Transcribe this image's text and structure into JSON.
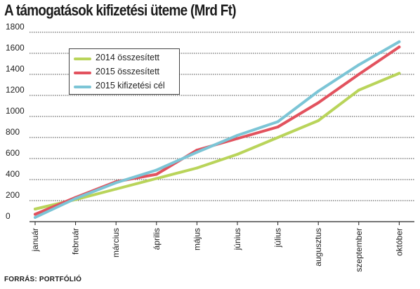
{
  "title": "A támogatások kifizetési üteme (Mrd Ft)",
  "source": "FORRÁS: PORTFÓLIÓ",
  "chart_data": {
    "type": "line",
    "title": "A támogatások kifizetési üteme (Mrd Ft)",
    "categories": [
      "január",
      "február",
      "március",
      "április",
      "május",
      "június",
      "július",
      "augusztus",
      "szeptember",
      "október"
    ],
    "ylim": [
      0,
      1800
    ],
    "yticks": [
      "0",
      "200",
      "400",
      "600",
      "800",
      "1000",
      "1200",
      "1400",
      "1600",
      "1800"
    ],
    "grid": true,
    "legend_position": "top-left",
    "series": [
      {
        "name": "2014 összesített",
        "color": "#b9d45a",
        "values": [
          120,
          210,
          310,
          410,
          510,
          640,
          800,
          960,
          1250,
          1410
        ]
      },
      {
        "name": "2015 összesített",
        "color": "#e2525e",
        "values": [
          70,
          230,
          380,
          450,
          680,
          790,
          900,
          1130,
          1400,
          1660
        ]
      },
      {
        "name": "2015 kifizetési cél",
        "color": "#7cc5d6",
        "values": [
          40,
          220,
          370,
          490,
          660,
          820,
          950,
          1240,
          1490,
          1710
        ]
      }
    ]
  }
}
